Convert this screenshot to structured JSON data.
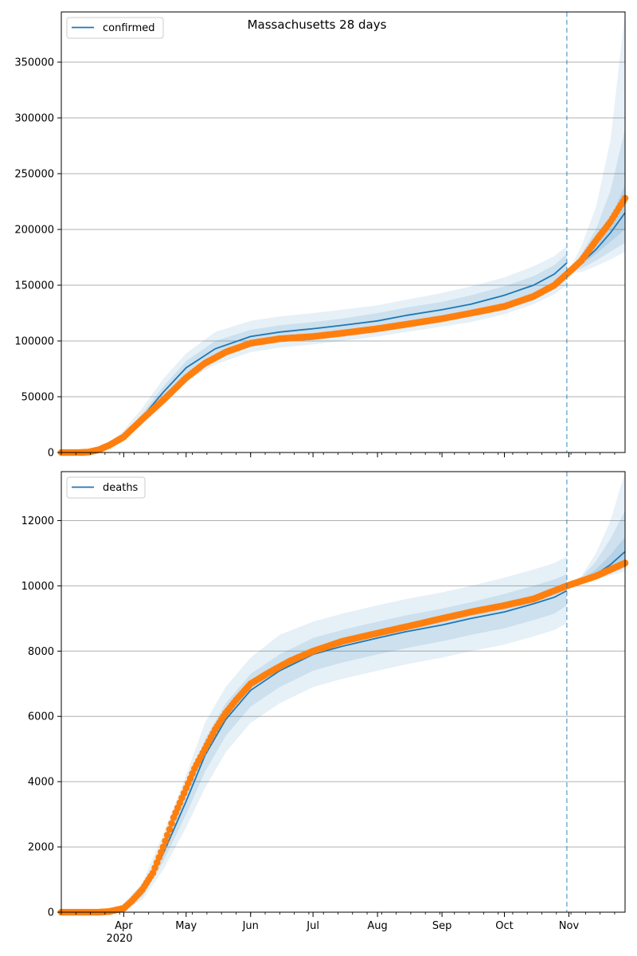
{
  "figure": {
    "title": "Massachusetts 28 days",
    "year_label": "2020"
  },
  "colors": {
    "model": "#1f77b4",
    "observed": "#ff7f0e",
    "band": "#1f77b4",
    "grid": "#b0b0b0",
    "marker_line": "#1f77b4"
  },
  "chart_data": [
    {
      "type": "line",
      "name": "confirmed",
      "legend": "confirmed",
      "legend_placement": "top-left",
      "grid": "y",
      "xlim": [
        "2020-03-02",
        "2020-11-28"
      ],
      "ylim": [
        0,
        395000
      ],
      "yticks": [
        0,
        50000,
        100000,
        150000,
        200000,
        250000,
        300000,
        350000
      ],
      "forecast_start": "2020-10-31",
      "model_fit": {
        "dates": [
          "2020-03-02",
          "2020-03-15",
          "2020-03-25",
          "2020-04-01",
          "2020-04-10",
          "2020-04-20",
          "2020-05-01",
          "2020-05-15",
          "2020-06-01",
          "2020-06-15",
          "2020-07-01",
          "2020-07-15",
          "2020-08-01",
          "2020-08-15",
          "2020-09-01",
          "2020-09-15",
          "2020-10-01",
          "2020-10-15",
          "2020-10-25",
          "2020-10-31"
        ],
        "median": [
          0,
          500,
          6000,
          15000,
          32000,
          54000,
          76000,
          93000,
          104000,
          108000,
          111000,
          114000,
          118000,
          123000,
          128000,
          133000,
          141000,
          150000,
          160000,
          170000
        ],
        "inner_low": [
          0,
          400,
          5000,
          13000,
          29000,
          49000,
          70000,
          86000,
          97000,
          101000,
          104000,
          107000,
          111000,
          115000,
          120000,
          125000,
          132000,
          141000,
          150000,
          160000
        ],
        "inner_high": [
          0,
          600,
          7000,
          17000,
          35000,
          59000,
          82000,
          100000,
          110000,
          114000,
          117000,
          120000,
          125000,
          130000,
          135000,
          141000,
          149000,
          158000,
          168000,
          178000
        ],
        "outer_low": [
          0,
          300,
          4000,
          11000,
          26000,
          44000,
          64000,
          79000,
          90000,
          94000,
          97000,
          100000,
          104000,
          108000,
          113000,
          117000,
          124000,
          133000,
          142000,
          150000
        ],
        "outer_high": [
          0,
          800,
          8500,
          20000,
          40000,
          66000,
          89000,
          108000,
          118000,
          122000,
          125000,
          128000,
          132000,
          137000,
          143000,
          149000,
          157000,
          167000,
          176000,
          185000
        ]
      },
      "forecast": {
        "dates": [
          "2020-10-31",
          "2020-11-07",
          "2020-11-14",
          "2020-11-21",
          "2020-11-28"
        ],
        "median": [
          160000,
          170000,
          182000,
          197000,
          215000
        ],
        "band1_low": [
          160000,
          168000,
          178000,
          189000,
          200000
        ],
        "band1_high": [
          160000,
          172000,
          188000,
          210000,
          240000
        ],
        "band2_low": [
          160000,
          165000,
          172000,
          180000,
          188000
        ],
        "band2_high": [
          160000,
          178000,
          200000,
          235000,
          290000
        ],
        "band3_low": [
          160000,
          162000,
          167000,
          173000,
          180000
        ],
        "band3_high": [
          160000,
          185000,
          220000,
          280000,
          395000
        ]
      },
      "observed": {
        "dates": [
          "2020-03-02",
          "2020-03-10",
          "2020-03-15",
          "2020-03-20",
          "2020-03-25",
          "2020-04-01",
          "2020-04-10",
          "2020-04-20",
          "2020-05-01",
          "2020-05-10",
          "2020-05-20",
          "2020-06-01",
          "2020-06-15",
          "2020-07-01",
          "2020-07-15",
          "2020-08-01",
          "2020-08-15",
          "2020-09-01",
          "2020-09-15",
          "2020-10-01",
          "2020-10-15",
          "2020-10-25",
          "2020-10-31",
          "2020-11-07",
          "2020-11-14",
          "2020-11-21",
          "2020-11-28"
        ],
        "values": [
          0,
          0,
          400,
          2500,
          6500,
          14000,
          30000,
          47000,
          67000,
          80000,
          90000,
          98000,
          102000,
          104000,
          107000,
          111000,
          115000,
          120000,
          125000,
          131000,
          140000,
          150000,
          160000,
          172000,
          190000,
          207000,
          228000
        ]
      }
    },
    {
      "type": "line",
      "name": "deaths",
      "legend": "deaths",
      "legend_placement": "top-left",
      "grid": "y",
      "xlim": [
        "2020-03-02",
        "2020-11-28"
      ],
      "ylim": [
        0,
        13500
      ],
      "yticks": [
        0,
        2000,
        4000,
        6000,
        8000,
        10000,
        12000
      ],
      "xticks": [
        {
          "date": "2020-04-01",
          "label": "Apr"
        },
        {
          "date": "2020-05-01",
          "label": "May"
        },
        {
          "date": "2020-06-01",
          "label": "Jun"
        },
        {
          "date": "2020-07-01",
          "label": "Jul"
        },
        {
          "date": "2020-08-01",
          "label": "Aug"
        },
        {
          "date": "2020-09-01",
          "label": "Sep"
        },
        {
          "date": "2020-10-01",
          "label": "Oct"
        },
        {
          "date": "2020-11-01",
          "label": "Nov"
        }
      ],
      "forecast_start": "2020-10-31",
      "model_fit": {
        "dates": [
          "2020-03-02",
          "2020-03-25",
          "2020-04-01",
          "2020-04-10",
          "2020-04-20",
          "2020-05-01",
          "2020-05-10",
          "2020-05-20",
          "2020-06-01",
          "2020-06-15",
          "2020-07-01",
          "2020-07-15",
          "2020-08-01",
          "2020-08-15",
          "2020-09-01",
          "2020-09-15",
          "2020-10-01",
          "2020-10-15",
          "2020-10-25",
          "2020-10-31"
        ],
        "median": [
          0,
          20,
          150,
          600,
          1800,
          3400,
          4800,
          5900,
          6800,
          7400,
          7900,
          8150,
          8400,
          8600,
          8800,
          9000,
          9200,
          9450,
          9650,
          9850
        ],
        "inner_low": [
          0,
          15,
          110,
          480,
          1550,
          3000,
          4300,
          5400,
          6300,
          6900,
          7400,
          7650,
          7900,
          8100,
          8300,
          8500,
          8700,
          8950,
          9150,
          9400
        ],
        "inner_high": [
          0,
          30,
          200,
          750,
          2100,
          3800,
          5300,
          6400,
          7300,
          7900,
          8400,
          8650,
          8900,
          9100,
          9300,
          9500,
          9750,
          10000,
          10200,
          10350
        ],
        "outer_low": [
          0,
          10,
          80,
          380,
          1300,
          2600,
          3800,
          4900,
          5800,
          6400,
          6900,
          7150,
          7400,
          7600,
          7800,
          8000,
          8200,
          8450,
          8650,
          8850
        ],
        "outer_high": [
          0,
          40,
          260,
          900,
          2400,
          4200,
          5800,
          6900,
          7800,
          8500,
          8900,
          9150,
          9400,
          9600,
          9800,
          10000,
          10250,
          10500,
          10700,
          10900
        ]
      },
      "forecast": {
        "dates": [
          "2020-10-31",
          "2020-11-07",
          "2020-11-14",
          "2020-11-21",
          "2020-11-28"
        ],
        "median": [
          10000,
          10150,
          10350,
          10650,
          11050
        ],
        "band1_low": [
          10000,
          10130,
          10280,
          10450,
          10650
        ],
        "band1_high": [
          10000,
          10200,
          10500,
          10950,
          11500
        ],
        "band2_low": [
          10000,
          10100,
          10230,
          10380,
          10550
        ],
        "band2_high": [
          10000,
          10250,
          10750,
          11450,
          12300
        ],
        "band3_low": [
          10000,
          10080,
          10190,
          10320,
          10450
        ],
        "band3_high": [
          10000,
          10300,
          11000,
          12000,
          13500
        ]
      },
      "observed": {
        "dates": [
          "2020-03-02",
          "2020-03-20",
          "2020-03-25",
          "2020-04-01",
          "2020-04-05",
          "2020-04-10",
          "2020-04-15",
          "2020-04-20",
          "2020-04-25",
          "2020-05-01",
          "2020-05-05",
          "2020-05-10",
          "2020-05-15",
          "2020-05-20",
          "2020-05-25",
          "2020-06-01",
          "2020-06-10",
          "2020-06-20",
          "2020-07-01",
          "2020-07-15",
          "2020-08-01",
          "2020-08-15",
          "2020-09-01",
          "2020-09-15",
          "2020-10-01",
          "2020-10-15",
          "2020-10-31",
          "2020-11-07",
          "2020-11-14",
          "2020-11-21",
          "2020-11-28"
        ],
        "values": [
          0,
          0,
          20,
          120,
          350,
          700,
          1200,
          2000,
          2900,
          3800,
          4400,
          5000,
          5600,
          6100,
          6500,
          7000,
          7350,
          7700,
          8000,
          8300,
          8550,
          8750,
          9000,
          9200,
          9400,
          9600,
          10000,
          10150,
          10300,
          10500,
          10700
        ]
      }
    }
  ]
}
